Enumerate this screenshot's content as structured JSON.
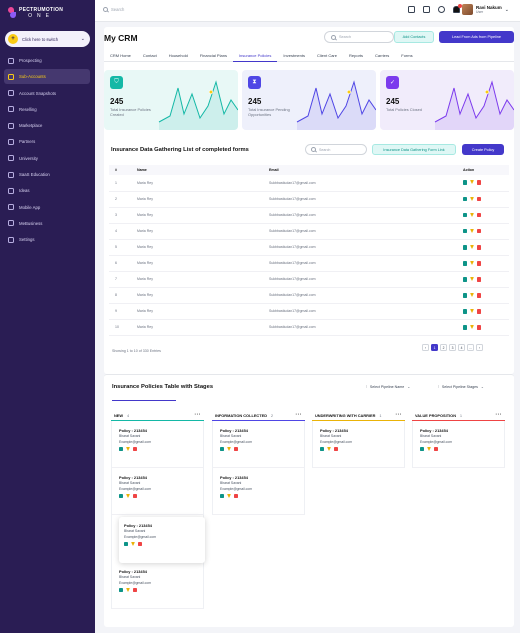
{
  "brand": {
    "name": "PECTRUMOTION",
    "sub": "ONE"
  },
  "sidebar": {
    "switch_label": "Click here to switch",
    "items": [
      {
        "label": "Prospecting",
        "active": false
      },
      {
        "label": "Sub-Accounts",
        "active": true
      },
      {
        "label": "Account Snapshots",
        "active": false
      },
      {
        "label": "Reselling",
        "active": false
      },
      {
        "label": "Marketplace",
        "active": false
      },
      {
        "label": "Partners",
        "active": false
      },
      {
        "label": "University",
        "active": false
      },
      {
        "label": "SaaS Education",
        "active": false
      },
      {
        "label": "Ideas",
        "active": false
      },
      {
        "label": "Mobile App",
        "active": false
      },
      {
        "label": "MeBusiness",
        "active": false
      },
      {
        "label": "Settings",
        "active": false
      }
    ]
  },
  "topbar": {
    "search_placeholder": "Search",
    "user_name": "Ravi Nakum",
    "user_role": "User"
  },
  "header": {
    "title": "My CRM",
    "search_placeholder": "Search",
    "add_contacts": "Add Contacts",
    "lead_form": "Lead From Ads from Pipeline"
  },
  "tabs": [
    "CRM Home",
    "Contact",
    "Household",
    "Financial Plans",
    "Insurance Policies",
    "Investments",
    "Client Care",
    "Reports",
    "Carriers",
    "Forms"
  ],
  "active_tab": "Insurance Policies",
  "stats": [
    {
      "value": "245",
      "label": "Total Insurance Policies Created",
      "color": "#14b8a6",
      "bg": "#e8f8f6"
    },
    {
      "value": "245",
      "label": "Total Insurance Pending Opportunities",
      "color": "#4f46e5",
      "bg": "#eef0fb"
    },
    {
      "value": "245",
      "label": "Total Policies Closed",
      "color": "#7c3aed",
      "bg": "#f1ecfb"
    }
  ],
  "gathering": {
    "title": "Insurance Data Gathering List of completed forms",
    "search_placeholder": "Search",
    "form_link_btn": "Insurance Data Gathering Form Link",
    "create_btn": "Create Policy",
    "columns": [
      "#",
      "Name",
      "Email",
      "Action"
    ],
    "rows": [
      {
        "no": "1",
        "name": "Maria Rey",
        "email": "Sukbbastiudan17@gmail.com"
      },
      {
        "no": "2",
        "name": "Maria Rey",
        "email": "Sukbbastiudan17@gmail.com"
      },
      {
        "no": "3",
        "name": "Maria Rey",
        "email": "Sukbbastiudan17@gmail.com"
      },
      {
        "no": "4",
        "name": "Maria Rey",
        "email": "Sukbbastiudan17@gmail.com"
      },
      {
        "no": "5",
        "name": "Maria Rey",
        "email": "Sukbbastiudan17@gmail.com"
      },
      {
        "no": "6",
        "name": "Maria Rey",
        "email": "Sukbbastiudan17@gmail.com"
      },
      {
        "no": "7",
        "name": "Maria Rey",
        "email": "Sukbbastiudan17@gmail.com"
      },
      {
        "no": "8",
        "name": "Maria Rey",
        "email": "Sukbbastiudan17@gmail.com"
      },
      {
        "no": "9",
        "name": "Maria Rey",
        "email": "Sukbbastiudan17@gmail.com"
      },
      {
        "no": "10",
        "name": "Maria Rey",
        "email": "Sukbbastiudan17@gmail.com"
      }
    ],
    "showing": "Showing 1 to 10 of 330 Entries",
    "pages": [
      "‹",
      "1",
      "2",
      "3",
      "4",
      "...",
      "›"
    ],
    "active_page": "1"
  },
  "pipeline": {
    "title": "Insurance Policies Table with Stages",
    "select_name": "Select Pipeline Name",
    "select_stages": "Select Pipeline Stages",
    "columns": [
      {
        "name": "NEW",
        "count": "4",
        "color": "#14b8a6"
      },
      {
        "name": "INFORMATION COLLECTED",
        "count": "2",
        "color": "#4f46e5"
      },
      {
        "name": "UNDERWRITING WITH CARRIER",
        "count": "1",
        "color": "#eab308"
      },
      {
        "name": "VALUE PROPOSITION",
        "count": "1",
        "color": "#ef4444"
      }
    ],
    "card": {
      "policy": "Policy : 213454",
      "name": "Bharat Savani",
      "email": "Example@gmail.com"
    }
  }
}
